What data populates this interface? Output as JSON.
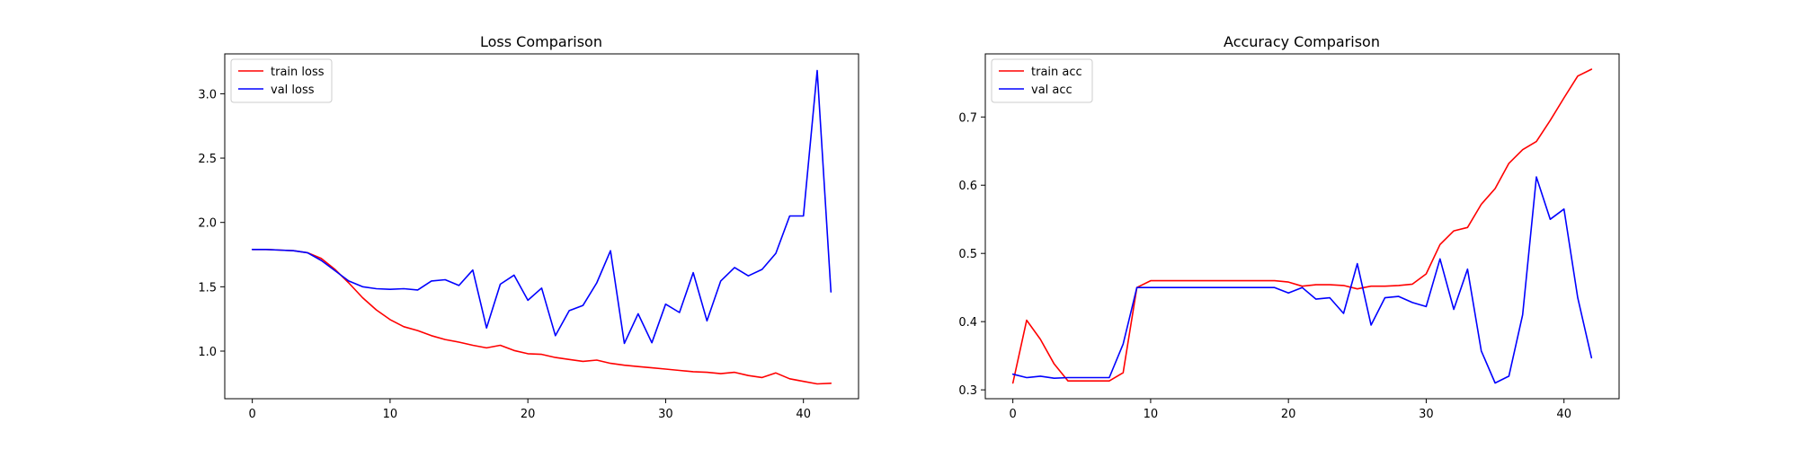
{
  "chart_data": [
    {
      "type": "line",
      "title": "Loss Comparison",
      "xlabel": "",
      "ylabel": "",
      "xlim": [
        -2,
        44
      ],
      "ylim": [
        0.63,
        3.31
      ],
      "xticks": [
        0,
        10,
        20,
        30,
        40
      ],
      "yticks": [
        1.0,
        1.5,
        2.0,
        2.5,
        3.0
      ],
      "ytick_format": 1,
      "grid": false,
      "legend_position": "upper-left",
      "series": [
        {
          "name": "train loss",
          "color": "#ff0000",
          "x": [
            0,
            1,
            2,
            3,
            4,
            5,
            6,
            7,
            8,
            9,
            10,
            11,
            12,
            13,
            14,
            15,
            16,
            17,
            18,
            19,
            20,
            21,
            22,
            23,
            24,
            25,
            26,
            27,
            28,
            29,
            30,
            31,
            32,
            33,
            34,
            35,
            36,
            37,
            38,
            39,
            40,
            41,
            42
          ],
          "y": [
            1.79,
            1.79,
            1.785,
            1.78,
            1.765,
            1.72,
            1.635,
            1.53,
            1.415,
            1.32,
            1.245,
            1.19,
            1.16,
            1.12,
            1.09,
            1.07,
            1.045,
            1.025,
            1.045,
            1.005,
            0.98,
            0.975,
            0.95,
            0.935,
            0.92,
            0.93,
            0.905,
            0.89,
            0.88,
            0.87,
            0.86,
            0.85,
            0.84,
            0.835,
            0.825,
            0.835,
            0.81,
            0.795,
            0.83,
            0.785,
            0.765,
            0.745,
            0.75
          ]
        },
        {
          "name": "val loss",
          "color": "#0000ff",
          "x": [
            0,
            1,
            2,
            3,
            4,
            5,
            6,
            7,
            8,
            9,
            10,
            11,
            12,
            13,
            14,
            15,
            16,
            17,
            18,
            19,
            20,
            21,
            22,
            23,
            24,
            25,
            26,
            27,
            28,
            29,
            30,
            31,
            32,
            33,
            34,
            35,
            36,
            37,
            38,
            39,
            40,
            41,
            42
          ],
          "y": [
            1.79,
            1.79,
            1.785,
            1.78,
            1.765,
            1.705,
            1.625,
            1.545,
            1.5,
            1.485,
            1.48,
            1.485,
            1.475,
            1.545,
            1.555,
            1.51,
            1.63,
            1.18,
            1.52,
            1.59,
            1.395,
            1.49,
            1.12,
            1.315,
            1.355,
            1.53,
            1.78,
            1.06,
            1.29,
            1.065,
            1.365,
            1.3,
            1.61,
            1.235,
            1.545,
            1.65,
            1.585,
            1.635,
            1.76,
            2.05,
            2.05,
            3.18,
            1.46
          ]
        }
      ]
    },
    {
      "type": "line",
      "title": "Accuracy Comparison",
      "xlabel": "",
      "ylabel": "",
      "xlim": [
        -2,
        44
      ],
      "ylim": [
        0.287,
        0.7925
      ],
      "xticks": [
        0,
        10,
        20,
        30,
        40
      ],
      "yticks": [
        0.3,
        0.4,
        0.5,
        0.6,
        0.7
      ],
      "ytick_format": 1,
      "grid": false,
      "legend_position": "upper-left",
      "series": [
        {
          "name": "train acc",
          "color": "#ff0000",
          "x": [
            0,
            1,
            2,
            3,
            4,
            5,
            6,
            7,
            8,
            9,
            10,
            11,
            12,
            13,
            14,
            15,
            16,
            17,
            18,
            19,
            20,
            21,
            22,
            23,
            24,
            25,
            26,
            27,
            28,
            29,
            30,
            31,
            32,
            33,
            34,
            35,
            36,
            37,
            38,
            39,
            40,
            41,
            42
          ],
          "y": [
            0.31,
            0.402,
            0.374,
            0.338,
            0.313,
            0.313,
            0.313,
            0.313,
            0.325,
            0.45,
            0.46,
            0.46,
            0.46,
            0.46,
            0.46,
            0.46,
            0.46,
            0.46,
            0.46,
            0.46,
            0.458,
            0.452,
            0.454,
            0.454,
            0.453,
            0.448,
            0.452,
            0.452,
            0.453,
            0.455,
            0.47,
            0.513,
            0.533,
            0.538,
            0.572,
            0.595,
            0.632,
            0.652,
            0.664,
            0.695,
            0.728,
            0.76,
            0.77
          ]
        },
        {
          "name": "val acc",
          "color": "#0000ff",
          "x": [
            0,
            1,
            2,
            3,
            4,
            5,
            6,
            7,
            8,
            9,
            10,
            11,
            12,
            13,
            14,
            15,
            16,
            17,
            18,
            19,
            20,
            21,
            22,
            23,
            24,
            25,
            26,
            27,
            28,
            29,
            30,
            31,
            32,
            33,
            34,
            35,
            36,
            37,
            38,
            39,
            40,
            41,
            42
          ],
          "y": [
            0.323,
            0.318,
            0.32,
            0.317,
            0.318,
            0.318,
            0.318,
            0.318,
            0.367,
            0.45,
            0.45,
            0.45,
            0.45,
            0.45,
            0.45,
            0.45,
            0.45,
            0.45,
            0.45,
            0.45,
            0.442,
            0.45,
            0.433,
            0.435,
            0.412,
            0.485,
            0.395,
            0.435,
            0.437,
            0.428,
            0.422,
            0.492,
            0.418,
            0.477,
            0.357,
            0.31,
            0.32,
            0.41,
            0.612,
            0.55,
            0.565,
            0.435,
            0.347
          ]
        }
      ]
    }
  ]
}
